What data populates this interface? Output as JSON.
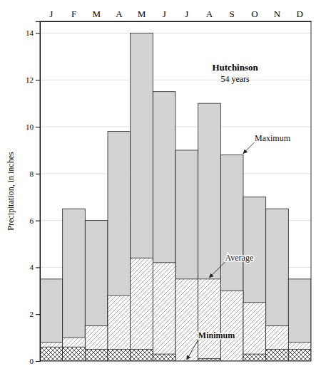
{
  "chart_data": {
    "type": "bar",
    "title": "Hutchinson",
    "subtitle": "54 years",
    "categories": [
      "J",
      "F",
      "M",
      "A",
      "M",
      "J",
      "J",
      "A",
      "S",
      "O",
      "N",
      "D"
    ],
    "series": [
      {
        "name": "Maximum",
        "color": "#d3d3d3",
        "values": [
          3.5,
          6.5,
          6.0,
          9.8,
          14.0,
          11.5,
          9.0,
          11.0,
          8.8,
          7.0,
          6.5,
          3.5
        ]
      },
      {
        "name": "Average",
        "color": "#aaaaaa",
        "values": [
          0.8,
          1.0,
          1.5,
          2.8,
          4.4,
          4.2,
          3.5,
          3.5,
          3.0,
          2.5,
          1.5,
          0.8
        ]
      },
      {
        "name": "Minimum",
        "color": "#555555",
        "values": [
          0.6,
          0.6,
          0.5,
          0.5,
          0.5,
          0.3,
          0.0,
          0.1,
          0.0,
          0.3,
          0.5,
          0.5
        ]
      }
    ],
    "ylabel": "Precipitation, in inches",
    "ylim": [
      0,
      14.5
    ],
    "yticks": [
      0,
      2,
      4,
      6,
      8,
      10,
      12,
      14
    ],
    "grid": true
  }
}
